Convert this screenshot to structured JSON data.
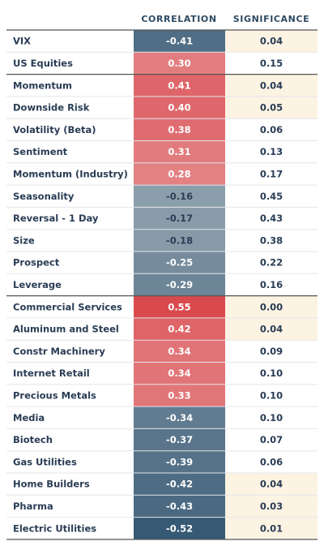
{
  "chart_data": {
    "type": "table",
    "columns": [
      "CORRELATION",
      "SIGNIFICANCE"
    ],
    "colors": {
      "negative_strong": "#2f536f",
      "neutral": "#f7f5f2",
      "positive_strong": "#d94a4f",
      "significant_highlight": "#fdf3e3",
      "text_dark": "#2a3d55",
      "rule": "#555555"
    },
    "groups": [
      {
        "rows": [
          {
            "label": "VIX",
            "correlation": -0.41,
            "significance": 0.04
          },
          {
            "label": "US Equities",
            "correlation": 0.3,
            "significance": 0.15
          }
        ]
      },
      {
        "rows": [
          {
            "label": "Momentum",
            "correlation": 0.41,
            "significance": 0.04
          },
          {
            "label": "Downside Risk",
            "correlation": 0.4,
            "significance": 0.05
          },
          {
            "label": "Volatility (Beta)",
            "correlation": 0.38,
            "significance": 0.06
          },
          {
            "label": "Sentiment",
            "correlation": 0.31,
            "significance": 0.13
          },
          {
            "label": "Momentum (Industry)",
            "correlation": 0.28,
            "significance": 0.17
          },
          {
            "label": "Seasonality",
            "correlation": -0.16,
            "significance": 0.45
          },
          {
            "label": "Reversal - 1 Day",
            "correlation": -0.17,
            "significance": 0.43
          },
          {
            "label": "Size",
            "correlation": -0.18,
            "significance": 0.38
          },
          {
            "label": "Prospect",
            "correlation": -0.25,
            "significance": 0.22
          },
          {
            "label": "Leverage",
            "correlation": -0.29,
            "significance": 0.16
          }
        ]
      },
      {
        "rows": [
          {
            "label": "Commercial Services",
            "correlation": 0.55,
            "significance": 0.0
          },
          {
            "label": "Aluminum and Steel",
            "correlation": 0.42,
            "significance": 0.04
          },
          {
            "label": "Constr Machinery",
            "correlation": 0.34,
            "significance": 0.09
          },
          {
            "label": "Internet Retail",
            "correlation": 0.34,
            "significance": 0.1
          },
          {
            "label": "Precious Metals",
            "correlation": 0.33,
            "significance": 0.1
          },
          {
            "label": "Media",
            "correlation": -0.34,
            "significance": 0.1
          },
          {
            "label": "Biotech",
            "correlation": -0.37,
            "significance": 0.07
          },
          {
            "label": "Gas Utilities",
            "correlation": -0.39,
            "significance": 0.06
          },
          {
            "label": "Home Builders",
            "correlation": -0.42,
            "significance": 0.04
          },
          {
            "label": "Pharma",
            "correlation": -0.43,
            "significance": 0.03
          },
          {
            "label": "Electric Utilities",
            "correlation": -0.52,
            "significance": 0.01
          }
        ]
      }
    ]
  }
}
